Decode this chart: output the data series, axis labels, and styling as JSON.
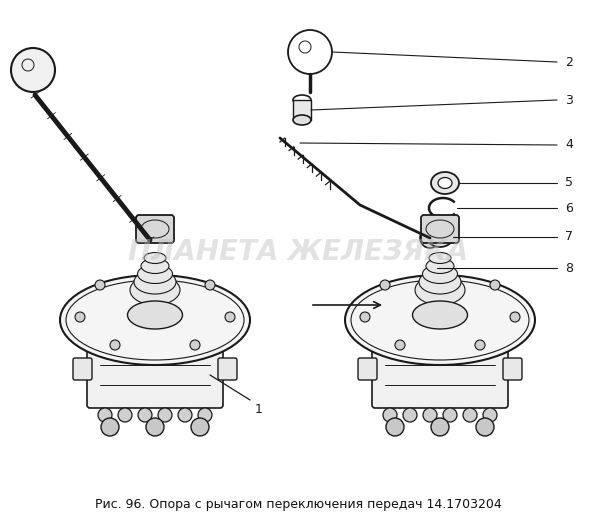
{
  "title": "Рис. 96. Опора с рычагом переключения передач 14.1703204",
  "title_fontsize": 9,
  "bg_color": "#ffffff",
  "watermark_text": "ПЛАНЕТА ЖЕЛЕЗЯКА",
  "watermark_color": "#c0c0c0",
  "watermark_alpha": 0.45,
  "line_color": "#1a1a1a",
  "fig_width": 5.97,
  "fig_height": 5.26,
  "dpi": 100,
  "label_fontsize": 9
}
